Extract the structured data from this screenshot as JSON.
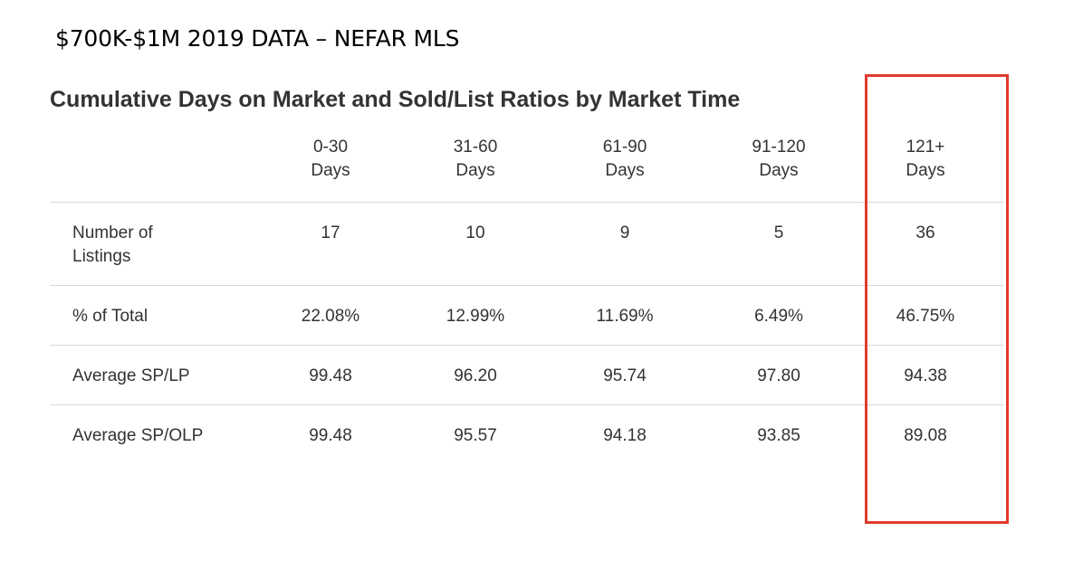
{
  "banner_title": "$700K-$1M 2019 DATA – NEFAR MLS",
  "table_title": "Cumulative Days on Market and Sold/List Ratios by Market Time",
  "columns": [
    {
      "line1": "0-30",
      "line2": "Days"
    },
    {
      "line1": "31-60",
      "line2": "Days"
    },
    {
      "line1": "61-90",
      "line2": "Days"
    },
    {
      "line1": "91-120",
      "line2": "Days"
    },
    {
      "line1": "121+",
      "line2": "Days"
    }
  ],
  "rows": [
    {
      "label_line1": "Number of",
      "label_line2": "Listings",
      "values": [
        "17",
        "10",
        "9",
        "5",
        "36"
      ]
    },
    {
      "label_line1": "% of Total",
      "label_line2": "",
      "values": [
        "22.08%",
        "12.99%",
        "11.69%",
        "6.49%",
        "46.75%"
      ]
    },
    {
      "label_line1": "Average SP/LP",
      "label_line2": "",
      "values": [
        "99.48",
        "96.20",
        "95.74",
        "97.80",
        "94.38"
      ]
    },
    {
      "label_line1": "Average SP/OLP",
      "label_line2": "",
      "values": [
        "99.48",
        "95.57",
        "94.18",
        "93.85",
        "89.08"
      ]
    }
  ],
  "colors": {
    "highlight": "#e03b2e",
    "text": "#333333",
    "divider": "#d8d8d8"
  }
}
